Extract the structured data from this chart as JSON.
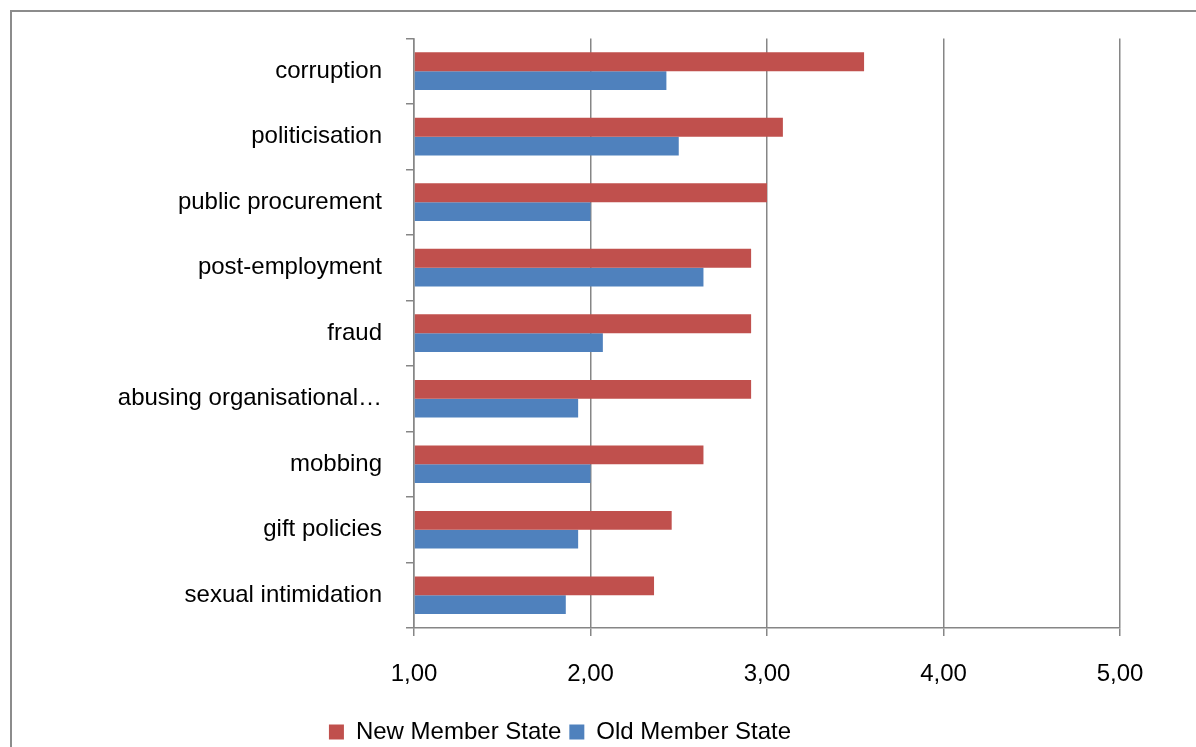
{
  "chart_data": {
    "type": "bar",
    "orientation": "horizontal",
    "categories": [
      "corruption",
      "politicisation",
      "public procurement",
      "post-employment",
      "fraud",
      "abusing organisational…",
      "mobbing",
      "gift policies",
      "sexual intimidation"
    ],
    "series": [
      {
        "name": "New Member State",
        "color": "#c0504d",
        "values": [
          3.55,
          3.09,
          3.0,
          2.91,
          2.91,
          2.91,
          2.64,
          2.46,
          2.36
        ]
      },
      {
        "name": "Old Member State",
        "color": "#4f81bd",
        "values": [
          2.43,
          2.5,
          2.0,
          2.64,
          2.07,
          1.93,
          2.0,
          1.93,
          1.86
        ]
      }
    ],
    "xlim": [
      1,
      5
    ],
    "xticks": [
      {
        "value": 1,
        "label": "1,00"
      },
      {
        "value": 2,
        "label": "2,00"
      },
      {
        "value": 3,
        "label": "3,00"
      },
      {
        "value": 4,
        "label": "4,00"
      },
      {
        "value": 5,
        "label": "5,00"
      }
    ],
    "grid": "x",
    "legend": "bottom"
  }
}
